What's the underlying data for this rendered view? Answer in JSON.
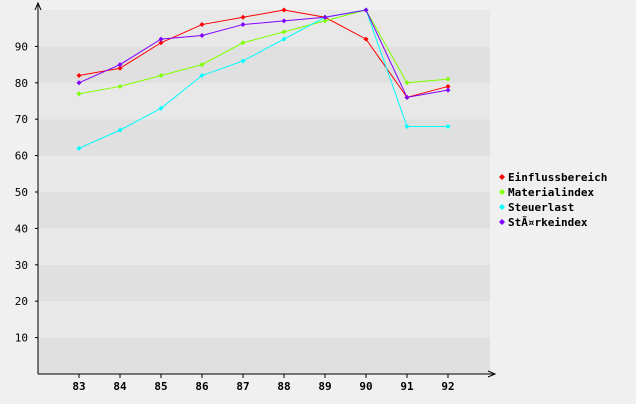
{
  "chart_data": {
    "type": "line",
    "x": [
      83,
      84,
      85,
      86,
      87,
      88,
      89,
      90,
      91,
      92
    ],
    "x_tick_labels": [
      "83",
      "84",
      "85",
      "86",
      "87",
      "88",
      "89",
      "90",
      "91",
      "92"
    ],
    "ylim": [
      0,
      100
    ],
    "y_ticks": [
      10,
      20,
      30,
      40,
      50,
      60,
      70,
      80,
      90
    ],
    "y_tick_labels": [
      "10",
      "20",
      "30",
      "40",
      "50",
      "60",
      "70",
      "80",
      "90"
    ],
    "grid": "horizontal bands",
    "legend_position": "right",
    "title": "",
    "xlabel": "",
    "ylabel": "",
    "series": [
      {
        "name": "Einflussbereich",
        "color": "#ff0000",
        "values": [
          82,
          84,
          91,
          96,
          98,
          100,
          98,
          92,
          76,
          79
        ]
      },
      {
        "name": "Materialindex",
        "color": "#80ff00",
        "values": [
          77,
          79,
          82,
          85,
          91,
          94,
          97,
          100,
          80,
          81
        ]
      },
      {
        "name": "Steuerlast",
        "color": "#00ffff",
        "values": [
          62,
          67,
          73,
          82,
          86,
          92,
          98,
          100,
          68,
          68
        ]
      },
      {
        "name": "Stärkeindex",
        "legend_label": "StÃ¤rkeindex",
        "color": "#8000ff",
        "values": [
          80,
          85,
          92,
          93,
          96,
          97,
          98,
          100,
          76,
          78
        ]
      }
    ]
  }
}
